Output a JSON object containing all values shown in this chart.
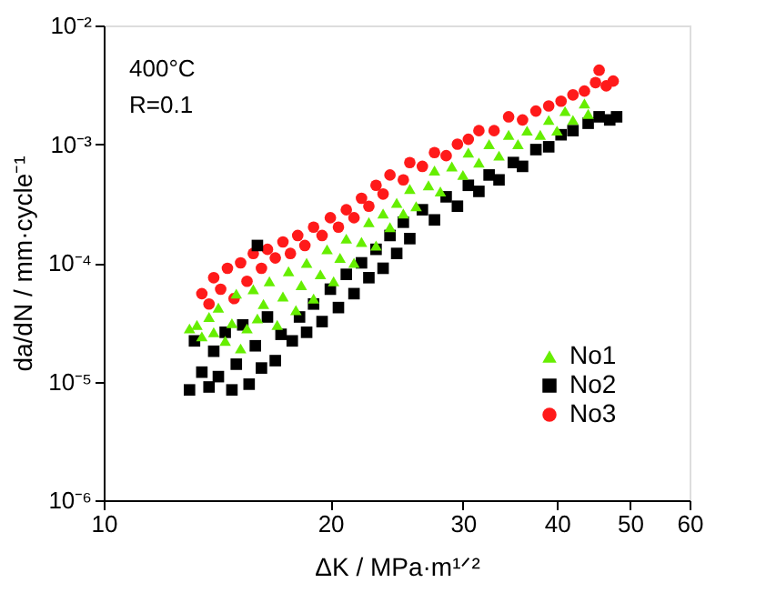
{
  "chart_data": {
    "type": "scatter",
    "xlabel": "ΔK / MPa·m¹ᐟ²",
    "ylabel": "da/dN / mm·cycle⁻¹",
    "annotations": [
      "400°C",
      "R=0.1"
    ],
    "log": "xy",
    "grid": false,
    "legend": "bottom right",
    "xlim": [
      10,
      60
    ],
    "xticks": [
      10,
      20,
      30,
      40,
      50,
      60
    ],
    "ylim": [
      1e-06,
      0.01
    ],
    "yticks": [
      {
        "value": 1e-06,
        "label": "10⁻⁶"
      },
      {
        "value": 1e-05,
        "label": "10⁻⁵"
      },
      {
        "value": 0.0001,
        "label": "10⁻⁴"
      },
      {
        "value": 0.001,
        "label": "10⁻³"
      },
      {
        "value": 0.01,
        "label": "10⁻²"
      }
    ],
    "series": [
      {
        "name": "No1",
        "color": "#66ee00",
        "marker": "triangle",
        "x": [
          13.0,
          13.3,
          13.5,
          13.8,
          14.0,
          14.2,
          14.5,
          14.8,
          15.0,
          15.2,
          15.5,
          15.8,
          16.0,
          16.3,
          16.6,
          17.0,
          17.3,
          17.6,
          18.0,
          18.3,
          18.6,
          19.0,
          19.4,
          19.8,
          20.2,
          20.6,
          21.0,
          21.5,
          22.0,
          22.5,
          23.0,
          23.5,
          24.0,
          24.5,
          25.0,
          25.5,
          26.0,
          27.0,
          27.5,
          28.0,
          29.0,
          30.0,
          30.5,
          31.5,
          32.5,
          33.5,
          34.5,
          35.5,
          36.5,
          38.0,
          39.0,
          40.0,
          41.0,
          42.0,
          43.5,
          44.0
        ],
        "values": [
          2.8e-05,
          3e-05,
          2.4e-05,
          3.5e-05,
          2.6e-05,
          4.2e-05,
          2.2e-05,
          3.1e-05,
          5.5e-05,
          1.9e-05,
          2.8e-05,
          6e-05,
          3.4e-05,
          4.5e-05,
          7e-05,
          3e-05,
          5.2e-05,
          8.5e-05,
          4e-05,
          6.5e-05,
          0.0001,
          5e-05,
          8e-05,
          0.00013,
          7e-05,
          0.00011,
          0.00016,
          0.0001,
          0.00015,
          0.00022,
          0.00014,
          0.00026,
          0.0002,
          0.00032,
          0.00026,
          0.00042,
          0.0003,
          0.00045,
          0.0006,
          0.0004,
          0.00065,
          0.00055,
          0.00085,
          0.0007,
          0.001,
          0.0008,
          0.0012,
          0.001,
          0.0013,
          0.0012,
          0.0016,
          0.0013,
          0.0019,
          0.0016,
          0.0022,
          0.0018
        ]
      },
      {
        "name": "No2",
        "color": "#000000",
        "marker": "square",
        "x": [
          13.0,
          13.2,
          13.5,
          13.8,
          14.0,
          14.2,
          14.5,
          14.8,
          15.0,
          15.3,
          15.6,
          15.9,
          16.0,
          16.2,
          16.5,
          16.9,
          17.2,
          17.8,
          18.2,
          18.6,
          19.0,
          19.5,
          20.0,
          20.5,
          21.0,
          21.5,
          22.0,
          22.5,
          23.0,
          23.5,
          24.0,
          24.5,
          25.0,
          25.5,
          26.5,
          27.5,
          28.5,
          29.5,
          30.5,
          31.5,
          32.5,
          33.5,
          35.0,
          36.0,
          37.5,
          39.0,
          40.5,
          42.0,
          44.0,
          45.5,
          47.0,
          48.0
        ],
        "values": [
          8.5e-06,
          2.2e-05,
          1.2e-05,
          9e-06,
          1.8e-05,
          1.1e-05,
          2.6e-05,
          8.5e-06,
          1.4e-05,
          3e-05,
          9.5e-06,
          2e-05,
          0.00014,
          1.3e-05,
          3.5e-05,
          1.5e-05,
          2.5e-05,
          2.2e-05,
          3.5e-05,
          2.6e-05,
          4.5e-05,
          3.2e-05,
          6e-05,
          4.2e-05,
          8e-05,
          5.5e-05,
          0.0001,
          7.5e-05,
          0.00013,
          9e-05,
          0.00017,
          0.00012,
          0.00022,
          0.00016,
          0.00028,
          0.00023,
          0.00036,
          0.0003,
          0.00045,
          0.0004,
          0.00055,
          0.0005,
          0.0007,
          0.00065,
          0.0009,
          0.00095,
          0.0012,
          0.0013,
          0.0015,
          0.0017,
          0.0016,
          0.0017
        ]
      },
      {
        "name": "No3",
        "color": "#ff1a1a",
        "marker": "circle",
        "x": [
          13.5,
          13.8,
          14.0,
          14.3,
          14.6,
          14.9,
          15.2,
          15.5,
          15.8,
          16.2,
          16.5,
          16.9,
          17.3,
          17.7,
          18.1,
          18.5,
          19.0,
          19.5,
          20.0,
          20.5,
          21.0,
          21.5,
          22.0,
          22.5,
          23.0,
          23.5,
          24.0,
          25.0,
          25.5,
          26.5,
          27.5,
          28.5,
          29.5,
          30.5,
          31.5,
          33.0,
          34.5,
          36.0,
          37.5,
          39.0,
          40.5,
          42.0,
          43.5,
          45.0,
          45.5,
          46.5,
          47.5
        ],
        "values": [
          5.5e-05,
          4.5e-05,
          7.5e-05,
          6e-05,
          9e-05,
          5e-05,
          0.0001,
          7e-05,
          0.00012,
          9e-05,
          0.00013,
          0.00011,
          0.00015,
          0.00012,
          0.00017,
          0.00014,
          0.0002,
          0.00017,
          0.00024,
          0.0002,
          0.00028,
          0.00024,
          0.00035,
          0.0003,
          0.00045,
          0.00038,
          0.00055,
          0.0005,
          0.0007,
          0.00065,
          0.00085,
          0.0008,
          0.001,
          0.0011,
          0.0013,
          0.0013,
          0.0017,
          0.0016,
          0.0019,
          0.0021,
          0.0023,
          0.0026,
          0.0028,
          0.0033,
          0.0042,
          0.0031,
          0.0034
        ]
      }
    ]
  }
}
